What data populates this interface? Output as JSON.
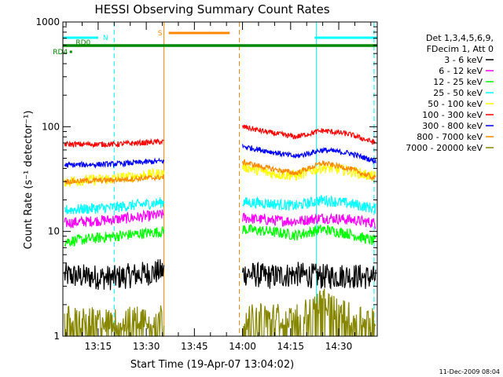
{
  "chart_data": {
    "type": "line",
    "title": "HESSI Observing Summary Count Rates",
    "xlabel": "Start Time (19-Apr-07 13:04:02)",
    "ylabel": "Count Rate (s⁻¹ detector⁻¹)",
    "yscale": "log",
    "ylim": [
      1,
      1000
    ],
    "xlim_minutes": [
      0,
      98
    ],
    "x_ticks": [
      {
        "m": 11,
        "label": "13:15"
      },
      {
        "m": 26,
        "label": "13:30"
      },
      {
        "m": 41,
        "label": "13:45"
      },
      {
        "m": 56,
        "label": "14:00"
      },
      {
        "m": 71,
        "label": "14:15"
      },
      {
        "m": 86,
        "label": "14:30"
      }
    ],
    "y_ticks": [
      {
        "v": 1,
        "label": "1"
      },
      {
        "v": 10,
        "label": "10"
      },
      {
        "v": 100,
        "label": "100"
      },
      {
        "v": 1000,
        "label": "1000"
      }
    ],
    "legend_placement": "right",
    "legend_header": [
      "Det 1,3,4,5,6,9,",
      "FDecim 1, Att 0"
    ],
    "timestamp": "11-Dec-2009 08:04",
    "gaps": [
      [
        31.5,
        55.5
      ]
    ],
    "series": [
      {
        "name": "3 - 6 keV",
        "color": "#000000",
        "left": [
          3.8,
          3.6,
          4.2
        ],
        "right": [
          4.0,
          3.7,
          3.9,
          3.7,
          3.8,
          3.6
        ]
      },
      {
        "name": "6 - 12 keV",
        "color": "#ff00ff",
        "left": [
          12,
          13,
          14.5
        ],
        "right": [
          13.5,
          12.8,
          12.5,
          13.5,
          13,
          12
        ]
      },
      {
        "name": "12 - 25 keV",
        "color": "#00ff00",
        "left": [
          8,
          9,
          10
        ],
        "right": [
          10.5,
          10,
          9.2,
          10.5,
          9.5,
          8
        ]
      },
      {
        "name": "25 - 50 keV",
        "color": "#00ffff",
        "left": [
          16,
          17,
          19
        ],
        "right": [
          19,
          18.5,
          17.5,
          20,
          18.5,
          16.5
        ]
      },
      {
        "name": "50 - 100 keV",
        "color": "#ffff00",
        "left": [
          30,
          32,
          36
        ],
        "right": [
          42,
          36,
          34,
          41,
          38,
          33
        ]
      },
      {
        "name": "100 - 300 keV",
        "color": "#ff0000",
        "left": [
          68,
          68,
          72
        ],
        "right": [
          100,
          88,
          80,
          92,
          85,
          70
        ]
      },
      {
        "name": "300 - 800 keV",
        "color": "#0000ff",
        "left": [
          43,
          44,
          47
        ],
        "right": [
          65,
          58,
          52,
          60,
          56,
          47
        ]
      },
      {
        "name": "800 - 7000 keV",
        "color": "#ff8800",
        "left": [
          30,
          31,
          33
        ],
        "right": [
          46,
          40,
          36,
          45,
          40,
          32
        ]
      },
      {
        "name": "7000 - 20000 keV",
        "color": "#888800",
        "left": [
          1.5,
          1.4,
          1.6
        ],
        "right": [
          1.5,
          1.6,
          1.5,
          2.2,
          1.6,
          1.5
        ]
      }
    ],
    "annotations": [
      {
        "label": "N",
        "color": "#00ffff",
        "type": "flag",
        "ranges": [
          [
            0,
            11
          ],
          [
            78.5,
            98
          ]
        ]
      },
      {
        "label": "S",
        "color": "#ff8800",
        "type": "flag",
        "ranges": [
          [
            33,
            52
          ]
        ]
      },
      {
        "label": "RD0",
        "color": "#008800",
        "type": "flag",
        "ranges": [
          [
            0,
            98
          ]
        ]
      },
      {
        "label": "RD4",
        "color": "#008800",
        "type": "point",
        "ranges": [
          [
            2.5,
            2.5
          ]
        ]
      }
    ],
    "markers": [
      {
        "m": 0,
        "color": "#00ffff",
        "style": "solid"
      },
      {
        "m": 16,
        "color": "#00ffff",
        "style": "dash"
      },
      {
        "m": 31.5,
        "color": "#ff8800",
        "style": "solid"
      },
      {
        "m": 55,
        "color": "#ff8800",
        "style": "dash"
      },
      {
        "m": 79,
        "color": "#00ffff",
        "style": "solid"
      },
      {
        "m": 97,
        "color": "#00ffff",
        "style": "dash"
      }
    ]
  }
}
